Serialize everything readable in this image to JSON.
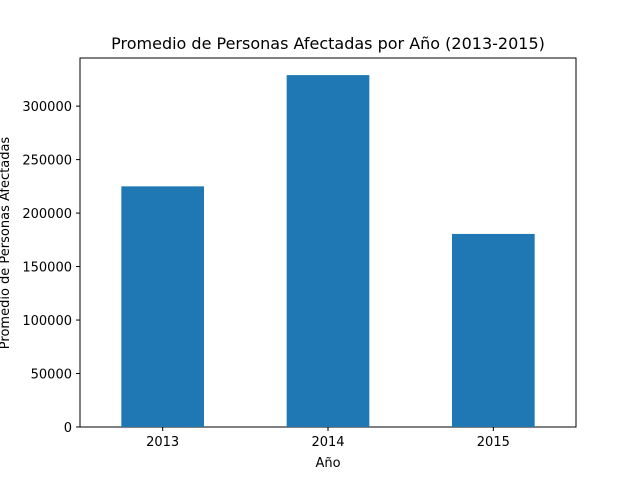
{
  "chart_data": {
    "type": "bar",
    "title": "Promedio de Personas Afectadas por Año (2013-2015)",
    "xlabel": "Año",
    "ylabel": "Promedio de Personas Afectadas",
    "categories": [
      "2013",
      "2014",
      "2015"
    ],
    "values": [
      225000,
      329000,
      180500
    ],
    "ylim": [
      0,
      345000
    ],
    "yticks": [
      0,
      50000,
      100000,
      150000,
      200000,
      250000,
      300000
    ],
    "ytick_labels": [
      "0",
      "50000",
      "100000",
      "150000",
      "200000",
      "250000",
      "300000"
    ],
    "bar_color": "#1f77b4",
    "grid": false,
    "legend": "none"
  }
}
